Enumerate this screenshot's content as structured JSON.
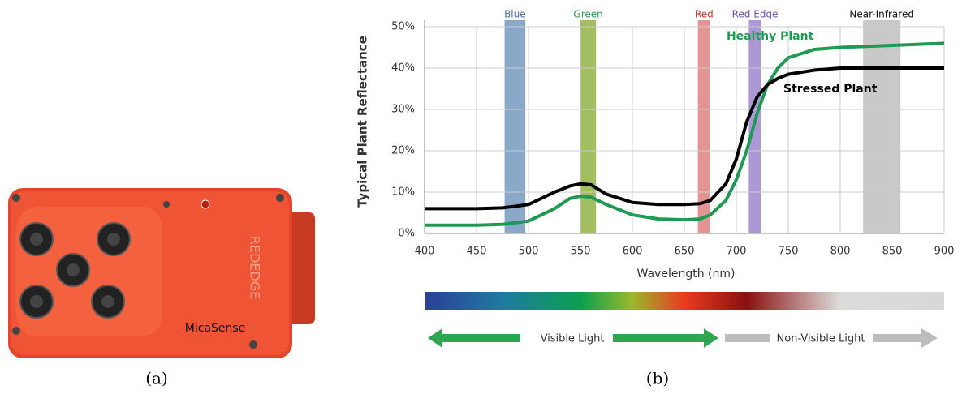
{
  "figure": {
    "captions": [
      "(a)",
      "(b)"
    ],
    "camera_labels": [
      "MicaSense",
      "REDEDGE"
    ]
  },
  "chart_data": {
    "type": "line",
    "y_label": "Typical Plant Reflectance",
    "x_label": "Wavelength (nm)",
    "xlim": [
      400,
      900
    ],
    "xticks": [
      400,
      450,
      500,
      550,
      600,
      650,
      700,
      750,
      800,
      850,
      900
    ],
    "ylim": [
      0,
      50
    ],
    "yticks": [
      {
        "value": 0,
        "label": "0%"
      },
      {
        "value": 10,
        "label": "10%"
      },
      {
        "value": 20,
        "label": "20%"
      },
      {
        "value": 30,
        "label": "30%"
      },
      {
        "value": 40,
        "label": "40%"
      },
      {
        "value": 50,
        "label": "50%"
      }
    ],
    "grid": true,
    "x": [
      400,
      450,
      475,
      500,
      525,
      540,
      550,
      560,
      575,
      600,
      625,
      650,
      665,
      675,
      690,
      700,
      710,
      720,
      730,
      740,
      750,
      775,
      800,
      850,
      900
    ],
    "series": [
      {
        "name": "Healthy Plant",
        "color": "#1f9a52",
        "values": [
          2,
          2,
          2.2,
          3,
          6,
          8.5,
          9,
          8.8,
          7,
          4.5,
          3.5,
          3.3,
          3.5,
          4.5,
          8,
          13,
          20,
          29,
          36,
          40,
          42.5,
          44.5,
          45,
          45.5,
          46
        ]
      },
      {
        "name": "Stressed Plant",
        "color": "#000000",
        "values": [
          6,
          6,
          6.2,
          7,
          10,
          11.5,
          12,
          11.8,
          9.5,
          7.5,
          7,
          7,
          7.2,
          8,
          12,
          18,
          27,
          33,
          36,
          37.5,
          38.5,
          39.5,
          40,
          40,
          40
        ]
      }
    ],
    "bands": [
      {
        "name": "Blue",
        "range": [
          477,
          497
        ],
        "color": "#8aa8c8",
        "label_color": "#4a6fa5"
      },
      {
        "name": "Green",
        "range": [
          550,
          565
        ],
        "color": "#a3bd62",
        "label_color": "#2e9a4e"
      },
      {
        "name": "Red",
        "range": [
          663,
          675
        ],
        "color": "#e39494",
        "label_color": "#c0392b"
      },
      {
        "name": "Red Edge",
        "range": [
          712,
          724
        ],
        "color": "#ad98d6",
        "label_color": "#6a4fb0"
      },
      {
        "name": "Near-Infrared",
        "range": [
          822,
          858
        ],
        "color": "#c9c9c9",
        "label_color": "#111111"
      }
    ],
    "spectrum_labels": [
      "Visible Light",
      "Non-Visible Light"
    ]
  }
}
